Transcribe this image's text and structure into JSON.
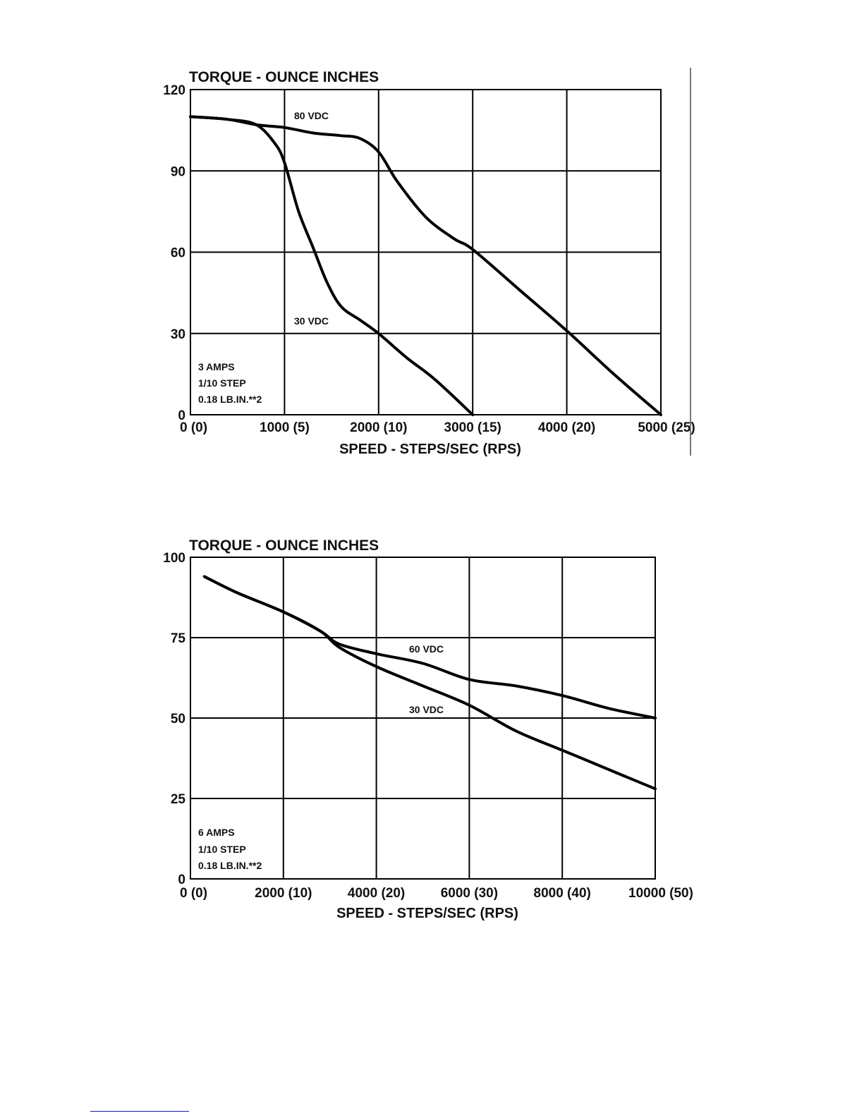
{
  "chart_data": [
    {
      "type": "line",
      "title": "TORQUE - OUNCE INCHES",
      "xlabel": "SPEED - STEPS/SEC (RPS)",
      "ylabel": "",
      "xlim": [
        0,
        5000
      ],
      "ylim": [
        0,
        120
      ],
      "grid": true,
      "x_tick_labels": [
        "0 (0)",
        "1000 (5)",
        "2000 (10)",
        "3000 (15)",
        "4000 (20)",
        "5000 (25)"
      ],
      "y_tick_labels": [
        "0",
        "30",
        "60",
        "90",
        "120"
      ],
      "notes": [
        "3 AMPS",
        "1/10 STEP",
        "0.18 LB.IN.**2"
      ],
      "series": [
        {
          "name": "80 VDC",
          "x": [
            0,
            400,
            700,
            1000,
            1300,
            1600,
            1800,
            2000,
            2200,
            2500,
            2800,
            3000,
            3500,
            4000,
            4500,
            5000
          ],
          "y": [
            110,
            109,
            107,
            106,
            104,
            103,
            102,
            97,
            86,
            73,
            65,
            61,
            46,
            31,
            15,
            0
          ]
        },
        {
          "name": "30 VDC",
          "x": [
            0,
            400,
            700,
            900,
            1000,
            1150,
            1300,
            1450,
            1600,
            1800,
            2000,
            2300,
            2600,
            3000
          ],
          "y": [
            110,
            109,
            107,
            100,
            93,
            75,
            62,
            49,
            40,
            35,
            30,
            21,
            13,
            0
          ]
        }
      ]
    },
    {
      "type": "line",
      "title": "TORQUE - OUNCE INCHES",
      "xlabel": "SPEED - STEPS/SEC (RPS)",
      "ylabel": "",
      "xlim": [
        0,
        10000
      ],
      "ylim": [
        0,
        100
      ],
      "grid": true,
      "x_tick_labels": [
        "0 (0)",
        "2000 (10)",
        "4000 (20)",
        "6000 (30)",
        "8000 (40)",
        "10000 (50)"
      ],
      "y_tick_labels": [
        "0",
        "25",
        "50",
        "75",
        "100"
      ],
      "notes": [
        "6 AMPS",
        "1/10 STEP",
        "0.18 LB.IN.**2"
      ],
      "series": [
        {
          "name": "60 VDC",
          "x": [
            300,
            1000,
            2000,
            2800,
            3200,
            4000,
            5000,
            6000,
            7000,
            8000,
            9000,
            10000
          ],
          "y": [
            94,
            89,
            83,
            77,
            73,
            70,
            67,
            62,
            60,
            57,
            53,
            50
          ]
        },
        {
          "name": "30 VDC",
          "x": [
            300,
            1000,
            2000,
            2800,
            3200,
            4000,
            5000,
            6000,
            7000,
            8000,
            9000,
            10000
          ],
          "y": [
            94,
            89,
            83,
            77,
            72,
            66,
            60,
            54,
            46,
            40,
            34,
            28
          ]
        }
      ]
    }
  ]
}
